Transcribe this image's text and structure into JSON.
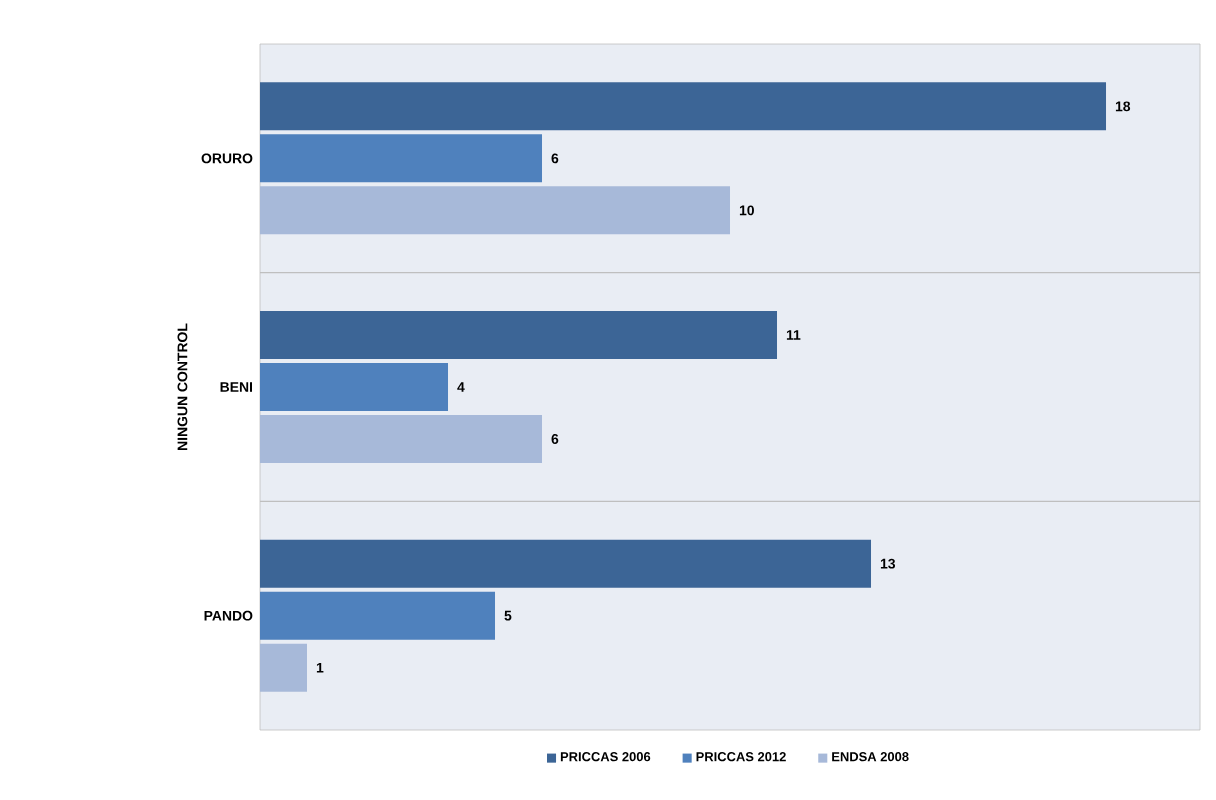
{
  "chart_data": {
    "type": "bar",
    "orientation": "horizontal",
    "ylabel": "NINGUN CONTROL",
    "categories": [
      "ORURO",
      "BENI",
      "PANDO"
    ],
    "series": [
      {
        "name": "PRICCAS 2006",
        "color": "#3c6596",
        "values": [
          18,
          11,
          13
        ]
      },
      {
        "name": "PRICCAS 2012",
        "color": "#4f81bd",
        "values": [
          6,
          4,
          5
        ]
      },
      {
        "name": "ENDSA 2008",
        "color": "#a7b9d9",
        "values": [
          10,
          6,
          1
        ]
      }
    ],
    "xlim": [
      0,
      20
    ],
    "tick_labels": "y",
    "data_labels": true,
    "legend": "bottom",
    "grid": "y"
  }
}
